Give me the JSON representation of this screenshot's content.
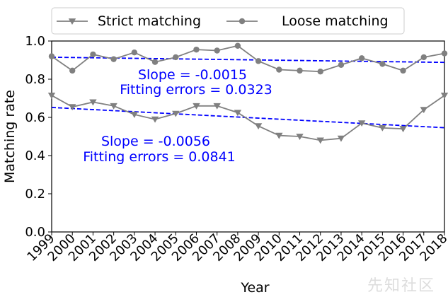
{
  "chart_data": {
    "type": "line",
    "x": [
      "1999",
      "2000",
      "2001",
      "2002",
      "2003",
      "2004",
      "2005",
      "2006",
      "2007",
      "2008",
      "2009",
      "2010",
      "2011",
      "2012",
      "2013",
      "2014",
      "2015",
      "2016",
      "2017",
      "2018"
    ],
    "series": [
      {
        "name": "Strict matching",
        "marker": "triangle-down",
        "color": "#808080",
        "values": [
          0.715,
          0.655,
          0.68,
          0.66,
          0.615,
          0.59,
          0.62,
          0.66,
          0.66,
          0.625,
          0.555,
          0.505,
          0.5,
          0.48,
          0.49,
          0.57,
          0.545,
          0.54,
          0.64,
          0.715
        ]
      },
      {
        "name": "Loose matching",
        "marker": "circle",
        "color": "#808080",
        "values": [
          0.92,
          0.845,
          0.93,
          0.905,
          0.94,
          0.89,
          0.915,
          0.955,
          0.95,
          0.975,
          0.895,
          0.85,
          0.845,
          0.84,
          0.875,
          0.91,
          0.88,
          0.845,
          0.915,
          0.935
        ]
      }
    ],
    "fits": [
      {
        "series": "Loose matching",
        "start": 0.915,
        "end": 0.888,
        "color": "#0000ff"
      },
      {
        "series": "Strict matching",
        "start": 0.652,
        "end": 0.546,
        "color": "#0000ff"
      }
    ],
    "annotations": [
      {
        "line1": "Slope = -0.0015",
        "line2": "Fitting errors = 0.0323",
        "color": "#0000ff"
      },
      {
        "line1": "Slope = -0.0056",
        "line2": "Fitting errors = 0.0841",
        "color": "#0000ff"
      }
    ],
    "xlabel": "Year",
    "ylabel": "Matching rate",
    "ylim": [
      0.0,
      1.0
    ],
    "yticks": [
      0.0,
      0.2,
      0.4,
      0.6,
      0.8,
      1.0
    ],
    "ytick_labels": [
      "0.0",
      "0.2",
      "0.4",
      "0.6",
      "0.8",
      "1.0"
    ],
    "grid": false,
    "legend_position": "top"
  },
  "watermark": "先知社区"
}
